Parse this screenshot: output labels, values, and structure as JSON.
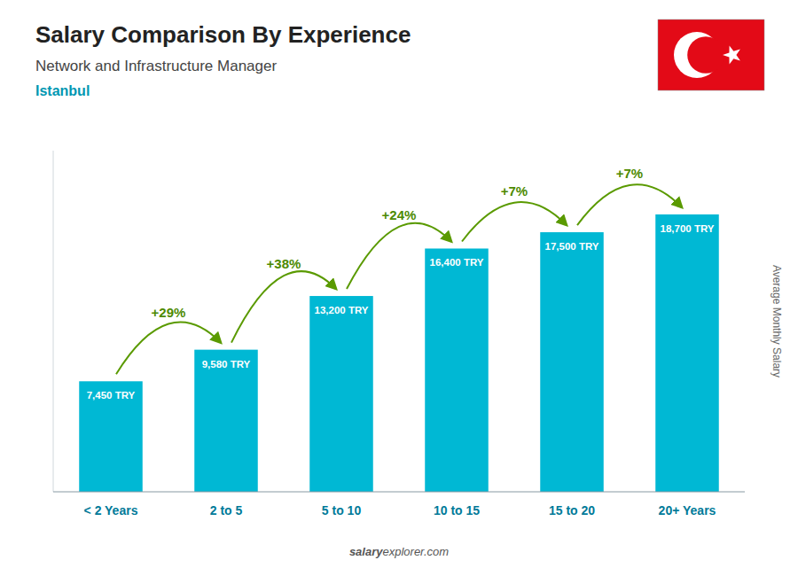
{
  "chart_data": {
    "type": "bar",
    "title": "Salary Comparison By Experience",
    "subtitle": "Network and Infrastructure Manager",
    "city": "Istanbul",
    "ylabel": "Average Monthly Salary",
    "footer": [
      "salary",
      "explorer.com"
    ],
    "categories": [
      "< 2 Years",
      "2 to 5",
      "5 to 10",
      "10 to 15",
      "15 to 20",
      "20+ Years"
    ],
    "values": [
      7450,
      9580,
      13200,
      16400,
      17500,
      18700
    ],
    "value_labels": [
      "7,450 TRY",
      "9,580 TRY",
      "13,200 TRY",
      "16,400 TRY",
      "17,500 TRY",
      "18,700 TRY"
    ],
    "data_labels": true,
    "annotations": [
      "+29%",
      "+38%",
      "+24%",
      "+7%",
      "+7%"
    ],
    "color": "#00b8d4",
    "ylim": [
      0,
      23000
    ],
    "tick_labels": "x",
    "grid": false
  }
}
